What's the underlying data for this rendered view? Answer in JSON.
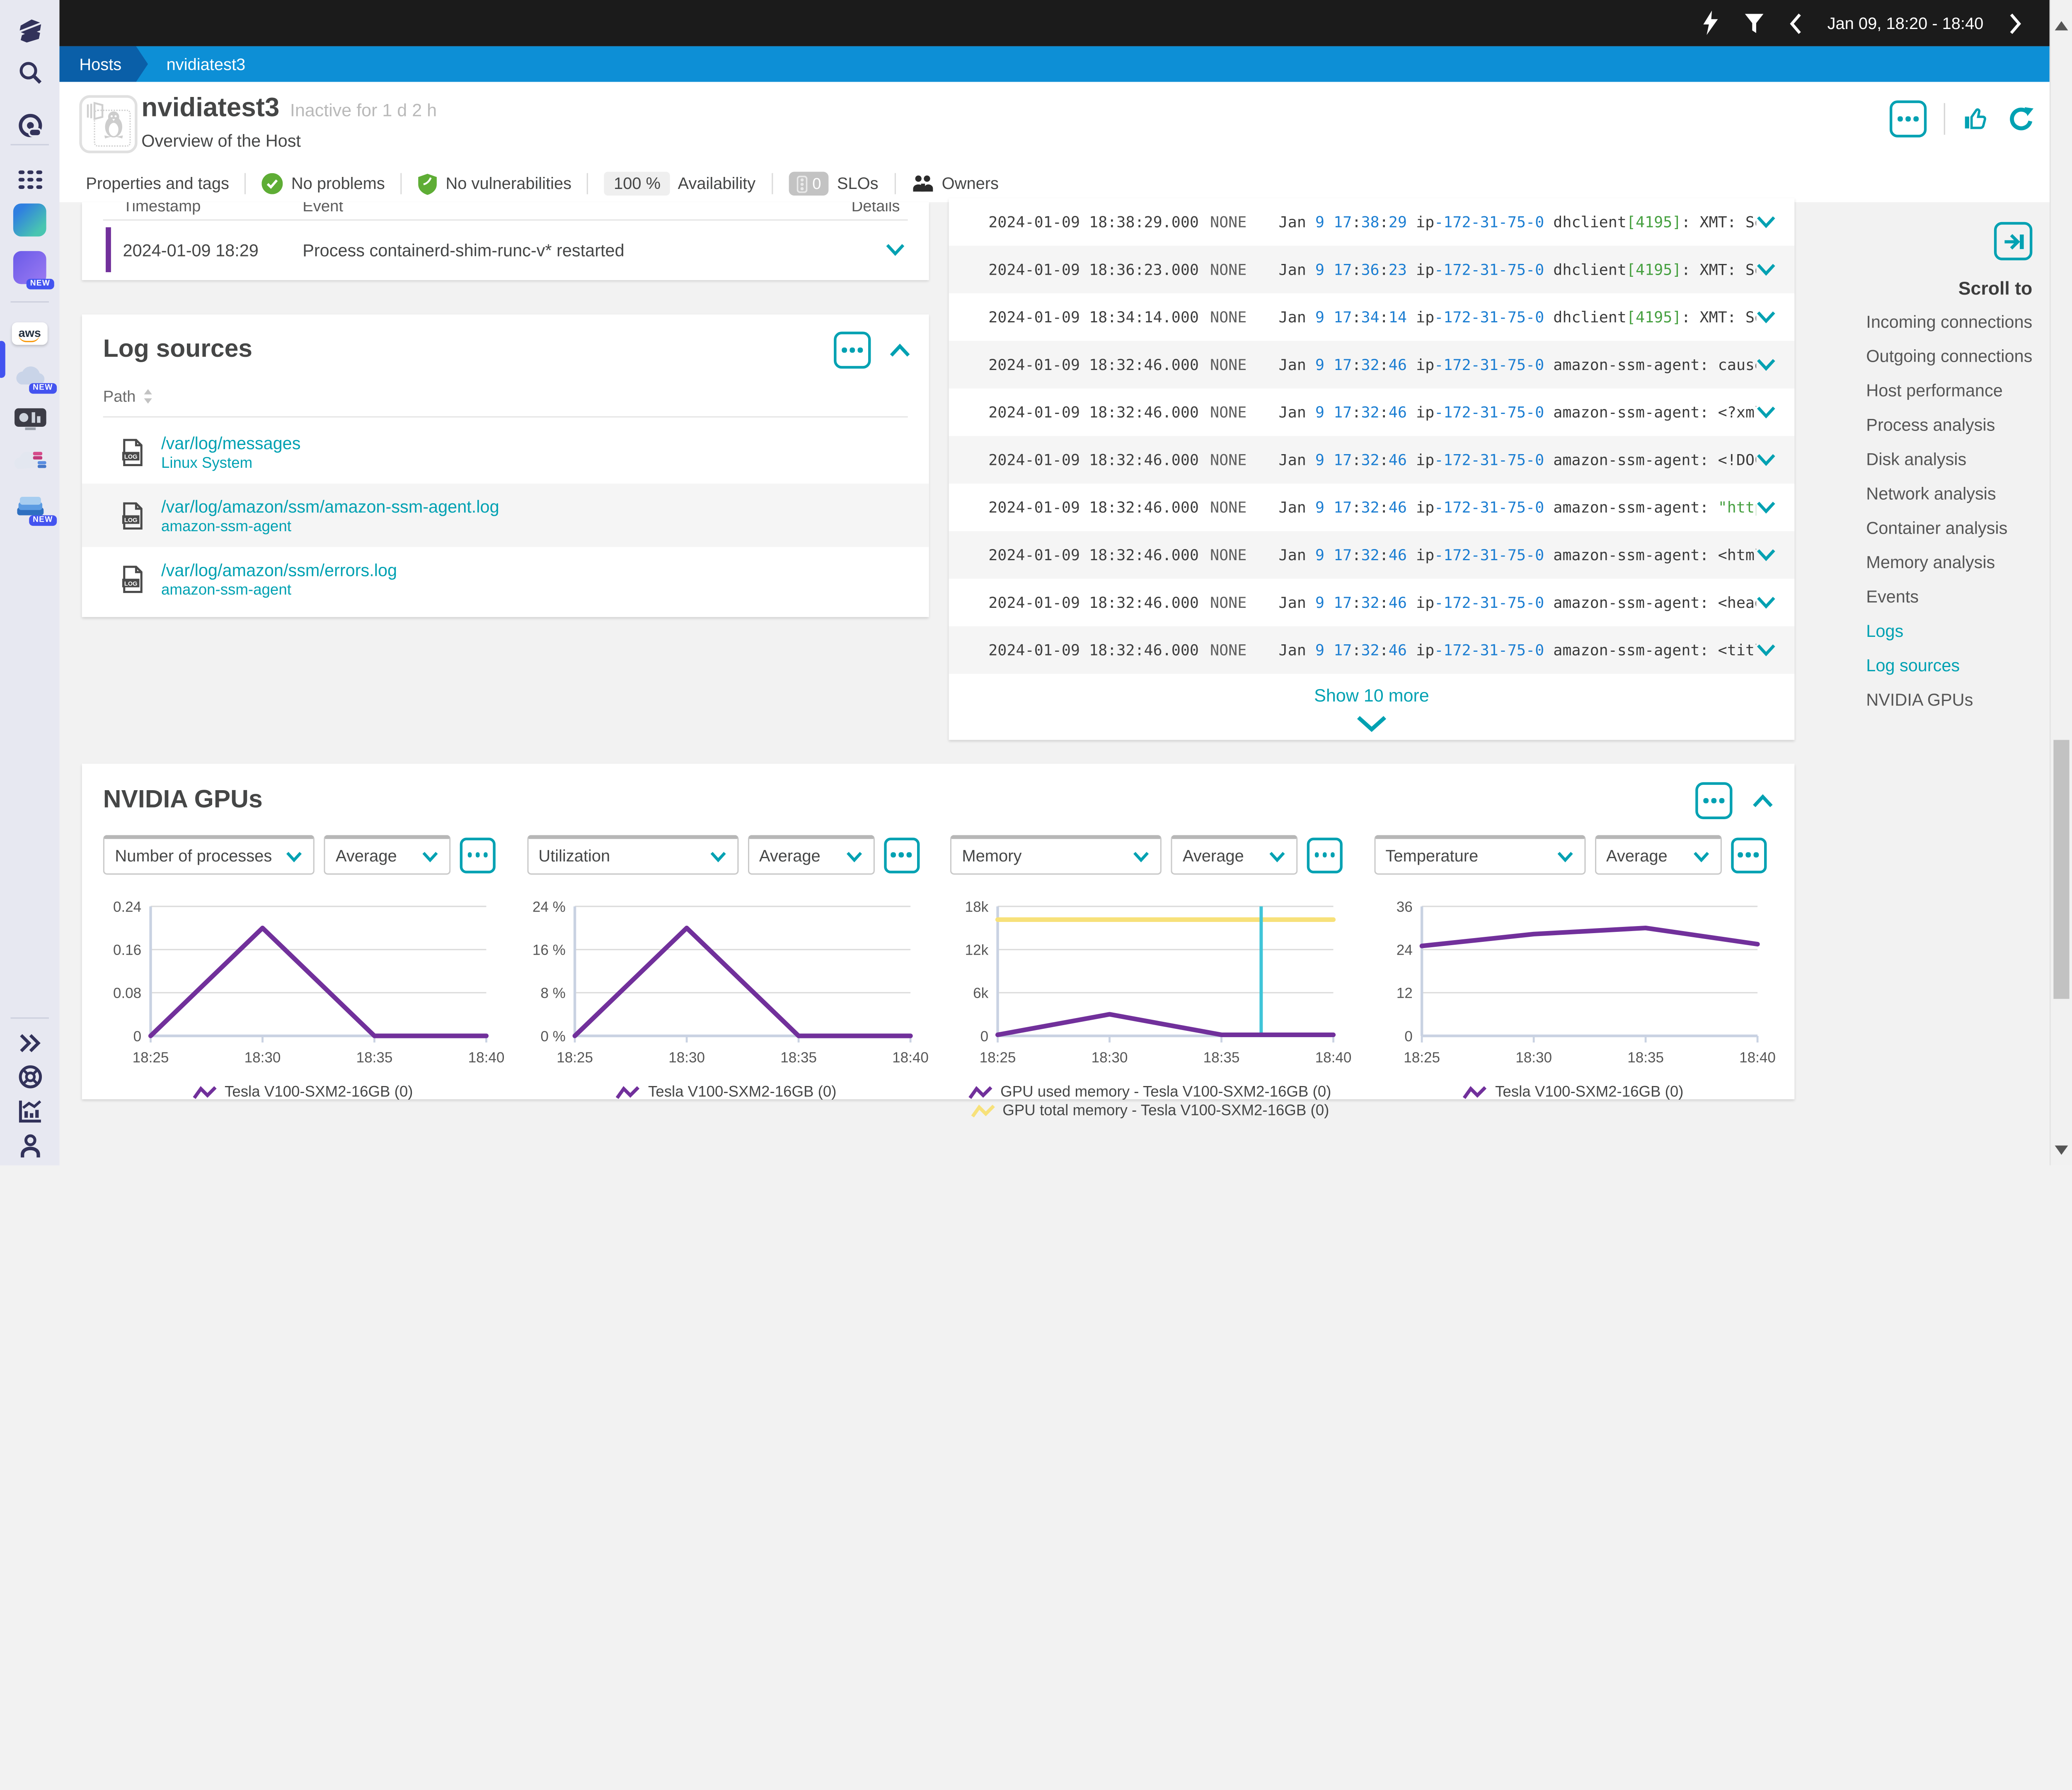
{
  "colors": {
    "accent": "#00a1b2",
    "purple": "#71309b",
    "yellow": "#f7e17a",
    "link_blue": "#1c7ed2",
    "green": "#46a040"
  },
  "topbar": {
    "date_range": "Jan 09, 18:20 - 18:40"
  },
  "breadcrumb": {
    "items": [
      "Hosts",
      "nvidiatest3"
    ]
  },
  "header": {
    "title": "nvidiatest3",
    "status": "Inactive for 1 d 2 h",
    "subtitle": "Overview of the Host"
  },
  "tags": {
    "properties": "Properties and tags",
    "no_problems": "No problems",
    "no_vulnerabilities": "No vulnerabilities",
    "availability_value": "100 %",
    "availability_label": "Availability",
    "slo_count": "0",
    "slo_label": "SLOs",
    "owners_label": "Owners"
  },
  "events": {
    "columns": [
      "Timestamp",
      "Event",
      "Details"
    ],
    "rows": [
      {
        "timestamp": "2024-01-09 18:29",
        "event": "Process containerd-shim-runc-v* restarted"
      }
    ]
  },
  "log_sources": {
    "title": "Log sources",
    "path_column": "Path",
    "rows": [
      {
        "path": "/var/log/messages",
        "source": "Linux System"
      },
      {
        "path": "/var/log/amazon/ssm/amazon-ssm-agent.log",
        "source": "amazon-ssm-agent"
      },
      {
        "path": "/var/log/amazon/ssm/errors.log",
        "source": "amazon-ssm-agent"
      }
    ]
  },
  "logs": {
    "show_more": "Show 10 more",
    "rows": [
      {
        "timestamp": "2024-01-09 18:38:29.000",
        "status": "NONE",
        "content": [
          {
            "t": "Jan ",
            "c": "t"
          },
          {
            "t": "9",
            "c": "n"
          },
          {
            "t": " ",
            "c": "t"
          },
          {
            "t": "17",
            "c": "n"
          },
          {
            "t": ":",
            "c": "t"
          },
          {
            "t": "38",
            "c": "n"
          },
          {
            "t": ":",
            "c": "t"
          },
          {
            "t": "29",
            "c": "n"
          },
          {
            "t": " ip",
            "c": "t"
          },
          {
            "t": "-172-31-75-0",
            "c": "n"
          },
          {
            "t": " dhclient",
            "c": "t"
          },
          {
            "t": "[4195]",
            "c": "g"
          },
          {
            "t": ": XMT: Sol",
            "c": "t"
          }
        ]
      },
      {
        "timestamp": "2024-01-09 18:36:23.000",
        "status": "NONE",
        "content": [
          {
            "t": "Jan ",
            "c": "t"
          },
          {
            "t": "9",
            "c": "n"
          },
          {
            "t": " ",
            "c": "t"
          },
          {
            "t": "17",
            "c": "n"
          },
          {
            "t": ":",
            "c": "t"
          },
          {
            "t": "36",
            "c": "n"
          },
          {
            "t": ":",
            "c": "t"
          },
          {
            "t": "23",
            "c": "n"
          },
          {
            "t": " ip",
            "c": "t"
          },
          {
            "t": "-172-31-75-0",
            "c": "n"
          },
          {
            "t": " dhclient",
            "c": "t"
          },
          {
            "t": "[4195]",
            "c": "g"
          },
          {
            "t": ": XMT: Sol",
            "c": "t"
          }
        ]
      },
      {
        "timestamp": "2024-01-09 18:34:14.000",
        "status": "NONE",
        "content": [
          {
            "t": "Jan ",
            "c": "t"
          },
          {
            "t": "9",
            "c": "n"
          },
          {
            "t": " ",
            "c": "t"
          },
          {
            "t": "17",
            "c": "n"
          },
          {
            "t": ":",
            "c": "t"
          },
          {
            "t": "34",
            "c": "n"
          },
          {
            "t": ":",
            "c": "t"
          },
          {
            "t": "14",
            "c": "n"
          },
          {
            "t": " ip",
            "c": "t"
          },
          {
            "t": "-172-31-75-0",
            "c": "n"
          },
          {
            "t": " dhclient",
            "c": "t"
          },
          {
            "t": "[4195]",
            "c": "g"
          },
          {
            "t": ": XMT: Sol",
            "c": "t"
          }
        ]
      },
      {
        "timestamp": "2024-01-09 18:32:46.000",
        "status": "NONE",
        "content": [
          {
            "t": "Jan ",
            "c": "t"
          },
          {
            "t": "9",
            "c": "n"
          },
          {
            "t": " ",
            "c": "t"
          },
          {
            "t": "17",
            "c": "n"
          },
          {
            "t": ":",
            "c": "t"
          },
          {
            "t": "32",
            "c": "n"
          },
          {
            "t": ":",
            "c": "t"
          },
          {
            "t": "46",
            "c": "n"
          },
          {
            "t": " ip",
            "c": "t"
          },
          {
            "t": "-172-31-75-0",
            "c": "n"
          },
          {
            "t": " amazon-ssm-agent: caused",
            "c": "t"
          }
        ]
      },
      {
        "timestamp": "2024-01-09 18:32:46.000",
        "status": "NONE",
        "content": [
          {
            "t": "Jan ",
            "c": "t"
          },
          {
            "t": "9",
            "c": "n"
          },
          {
            "t": " ",
            "c": "t"
          },
          {
            "t": "17",
            "c": "n"
          },
          {
            "t": ":",
            "c": "t"
          },
          {
            "t": "32",
            "c": "n"
          },
          {
            "t": ":",
            "c": "t"
          },
          {
            "t": "46",
            "c": "n"
          },
          {
            "t": " ip",
            "c": "t"
          },
          {
            "t": "-172-31-75-0",
            "c": "n"
          },
          {
            "t": " amazon-ssm-agent: <?xml",
            "c": "t"
          }
        ]
      },
      {
        "timestamp": "2024-01-09 18:32:46.000",
        "status": "NONE",
        "content": [
          {
            "t": "Jan ",
            "c": "t"
          },
          {
            "t": "9",
            "c": "n"
          },
          {
            "t": " ",
            "c": "t"
          },
          {
            "t": "17",
            "c": "n"
          },
          {
            "t": ":",
            "c": "t"
          },
          {
            "t": "32",
            "c": "n"
          },
          {
            "t": ":",
            "c": "t"
          },
          {
            "t": "46",
            "c": "n"
          },
          {
            "t": " ip",
            "c": "t"
          },
          {
            "t": "-172-31-75-0",
            "c": "n"
          },
          {
            "t": " amazon-ssm-agent: <!DOCT",
            "c": "t"
          }
        ]
      },
      {
        "timestamp": "2024-01-09 18:32:46.000",
        "status": "NONE",
        "content": [
          {
            "t": "Jan ",
            "c": "t"
          },
          {
            "t": "9",
            "c": "n"
          },
          {
            "t": " ",
            "c": "t"
          },
          {
            "t": "17",
            "c": "n"
          },
          {
            "t": ":",
            "c": "t"
          },
          {
            "t": "32",
            "c": "n"
          },
          {
            "t": ":",
            "c": "t"
          },
          {
            "t": "46",
            "c": "n"
          },
          {
            "t": " ip",
            "c": "t"
          },
          {
            "t": "-172-31-75-0",
            "c": "n"
          },
          {
            "t": " amazon-ssm-agent: ",
            "c": "t"
          },
          {
            "t": "\"http",
            "c": "g"
          }
        ]
      },
      {
        "timestamp": "2024-01-09 18:32:46.000",
        "status": "NONE",
        "content": [
          {
            "t": "Jan ",
            "c": "t"
          },
          {
            "t": "9",
            "c": "n"
          },
          {
            "t": " ",
            "c": "t"
          },
          {
            "t": "17",
            "c": "n"
          },
          {
            "t": ":",
            "c": "t"
          },
          {
            "t": "32",
            "c": "n"
          },
          {
            "t": ":",
            "c": "t"
          },
          {
            "t": "46",
            "c": "n"
          },
          {
            "t": " ip",
            "c": "t"
          },
          {
            "t": "-172-31-75-0",
            "c": "n"
          },
          {
            "t": " amazon-ssm-agent: <html",
            "c": "t"
          }
        ]
      },
      {
        "timestamp": "2024-01-09 18:32:46.000",
        "status": "NONE",
        "content": [
          {
            "t": "Jan ",
            "c": "t"
          },
          {
            "t": "9",
            "c": "n"
          },
          {
            "t": " ",
            "c": "t"
          },
          {
            "t": "17",
            "c": "n"
          },
          {
            "t": ":",
            "c": "t"
          },
          {
            "t": "32",
            "c": "n"
          },
          {
            "t": ":",
            "c": "t"
          },
          {
            "t": "46",
            "c": "n"
          },
          {
            "t": " ip",
            "c": "t"
          },
          {
            "t": "-172-31-75-0",
            "c": "n"
          },
          {
            "t": " amazon-ssm-agent: <head>",
            "c": "t"
          }
        ]
      },
      {
        "timestamp": "2024-01-09 18:32:46.000",
        "status": "NONE",
        "content": [
          {
            "t": "Jan ",
            "c": "t"
          },
          {
            "t": "9",
            "c": "n"
          },
          {
            "t": " ",
            "c": "t"
          },
          {
            "t": "17",
            "c": "n"
          },
          {
            "t": ":",
            "c": "t"
          },
          {
            "t": "32",
            "c": "n"
          },
          {
            "t": ":",
            "c": "t"
          },
          {
            "t": "46",
            "c": "n"
          },
          {
            "t": " ip",
            "c": "t"
          },
          {
            "t": "-172-31-75-0",
            "c": "n"
          },
          {
            "t": " amazon-ssm-agent: <title",
            "c": "t"
          }
        ]
      }
    ]
  },
  "scroll_to": {
    "title": "Scroll to",
    "items": [
      {
        "label": "Incoming connections",
        "active": false
      },
      {
        "label": "Outgoing connections",
        "active": false
      },
      {
        "label": "Host performance",
        "active": false
      },
      {
        "label": "Process analysis",
        "active": false
      },
      {
        "label": "Disk analysis",
        "active": false
      },
      {
        "label": "Network analysis",
        "active": false
      },
      {
        "label": "Container analysis",
        "active": false
      },
      {
        "label": "Memory analysis",
        "active": false
      },
      {
        "label": "Events",
        "active": false
      },
      {
        "label": "Logs",
        "active": true
      },
      {
        "label": "Log sources",
        "active": true
      },
      {
        "label": "NVIDIA GPUs",
        "active": false
      }
    ]
  },
  "gpus": {
    "title": "NVIDIA GPUs"
  },
  "sidebar": {
    "aws_label": "aws",
    "new_badge": "NEW"
  },
  "chart_data": [
    {
      "type": "line",
      "title": "Number of processes",
      "aggregation": "Average",
      "x_labels": [
        "18:25",
        "18:30",
        "18:35",
        "18:40"
      ],
      "ylim": [
        0,
        0.24
      ],
      "yticks": [
        "0",
        "0.08",
        "0.16",
        "0.24"
      ],
      "series": [
        {
          "name": "Tesla V100-SXM2-16GB (0)",
          "color": "#71309b",
          "values": [
            0,
            0.2,
            0,
            0
          ]
        }
      ]
    },
    {
      "type": "line",
      "title": "Utilization",
      "aggregation": "Average",
      "x_labels": [
        "18:25",
        "18:30",
        "18:35",
        "18:40"
      ],
      "ylim": [
        0,
        24
      ],
      "yticks": [
        "0 %",
        "8 %",
        "16 %",
        "24 %"
      ],
      "series": [
        {
          "name": "Tesla V100-SXM2-16GB (0)",
          "color": "#71309b",
          "values": [
            0,
            20,
            0,
            0
          ]
        }
      ]
    },
    {
      "type": "line",
      "title": "Memory",
      "aggregation": "Average",
      "x_labels": [
        "18:25",
        "18:30",
        "18:35",
        "18:40"
      ],
      "ylim": [
        0,
        18000
      ],
      "yticks": [
        "0",
        "6k",
        "12k",
        "18k"
      ],
      "cursor_fraction": 0.785,
      "cursor_color": "#3fc5d8",
      "series": [
        {
          "name": "GPU used memory - Tesla V100-SXM2-16GB (0)",
          "color": "#71309b",
          "values": [
            150,
            3000,
            150,
            150
          ]
        },
        {
          "name": "GPU total memory - Tesla V100-SXM2-16GB (0)",
          "color": "#f7e17a",
          "values": [
            16160,
            16160,
            16160,
            16160
          ]
        }
      ]
    },
    {
      "type": "line",
      "title": "Temperature",
      "aggregation": "Average",
      "x_labels": [
        "18:25",
        "18:30",
        "18:35",
        "18:40"
      ],
      "ylim": [
        0,
        36
      ],
      "yticks": [
        "0",
        "12",
        "24",
        "36"
      ],
      "series": [
        {
          "name": "Tesla V100-SXM2-16GB (0)",
          "color": "#71309b",
          "values": [
            25,
            28.3,
            30,
            25.5
          ]
        }
      ]
    }
  ]
}
